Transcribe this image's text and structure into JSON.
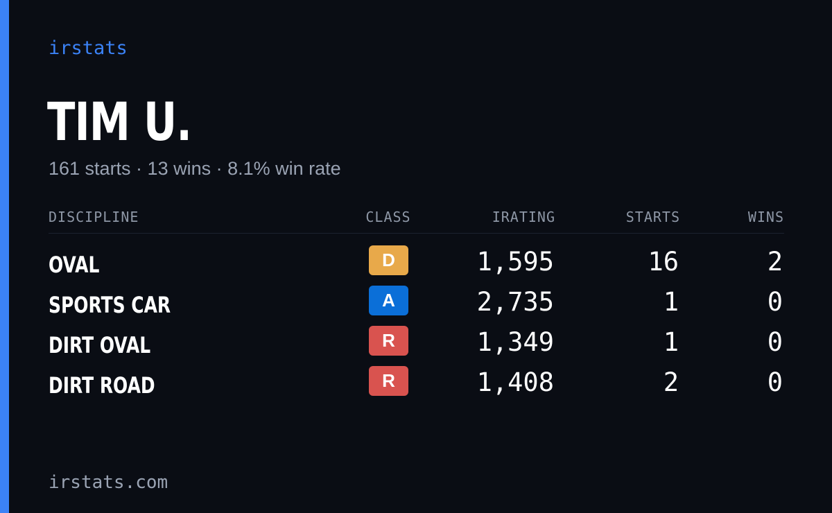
{
  "brand": "irstats",
  "driver": {
    "name": "TIM U.",
    "summary": "161 starts · 13 wins · 8.1% win rate"
  },
  "table": {
    "headers": {
      "discipline": "DISCIPLINE",
      "class": "CLASS",
      "irating": "IRATING",
      "starts": "STARTS",
      "wins": "WINS"
    },
    "rows": [
      {
        "discipline": "OVAL",
        "class": "D",
        "class_color": "#e8a94a",
        "irating": "1,595",
        "starts": "16",
        "wins": "2"
      },
      {
        "discipline": "SPORTS CAR",
        "class": "A",
        "class_color": "#0b6fd8",
        "irating": "2,735",
        "starts": "1",
        "wins": "0"
      },
      {
        "discipline": "DIRT OVAL",
        "class": "R",
        "class_color": "#d9534f",
        "irating": "1,349",
        "starts": "1",
        "wins": "0"
      },
      {
        "discipline": "DIRT ROAD",
        "class": "R",
        "class_color": "#d9534f",
        "irating": "1,408",
        "starts": "2",
        "wins": "0"
      }
    ]
  },
  "footer": "irstats.com",
  "colors": {
    "accent": "#3b82f6",
    "background": "#0a0d14"
  }
}
